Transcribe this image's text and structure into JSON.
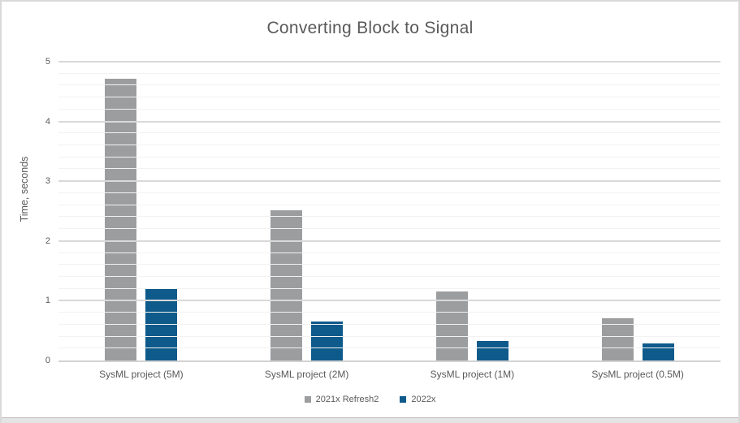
{
  "chart_data": {
    "type": "bar",
    "title": "Converting Block to Signal",
    "xlabel": "",
    "ylabel": "Time, seconds",
    "categories": [
      "SysML project (5M)",
      "SysML project (2M)",
      "SysML project (1M)",
      "SysML project (0.5M)"
    ],
    "series": [
      {
        "name": "2021x Refresh2",
        "color": "#9b9d9f",
        "values": [
          4.71,
          2.52,
          1.15,
          0.71
        ]
      },
      {
        "name": "2022x",
        "color": "#0e5a8b",
        "values": [
          1.21,
          0.65,
          0.32,
          0.28
        ]
      }
    ],
    "ylim": [
      0,
      5
    ],
    "yticks": [
      0,
      1,
      2,
      3,
      4,
      5
    ],
    "minor_gridline_step": 0.2,
    "major_gridline_step": 1,
    "grid": true,
    "legend_position": "bottom"
  },
  "colors": {
    "title_text": "#595959",
    "axis_text": "#595959",
    "major_gridline": "#d9d9d9",
    "minor_gridline": "#f2f2f2",
    "axis_line": "#d2d2d2",
    "frame_border": "#d9d9d9"
  }
}
